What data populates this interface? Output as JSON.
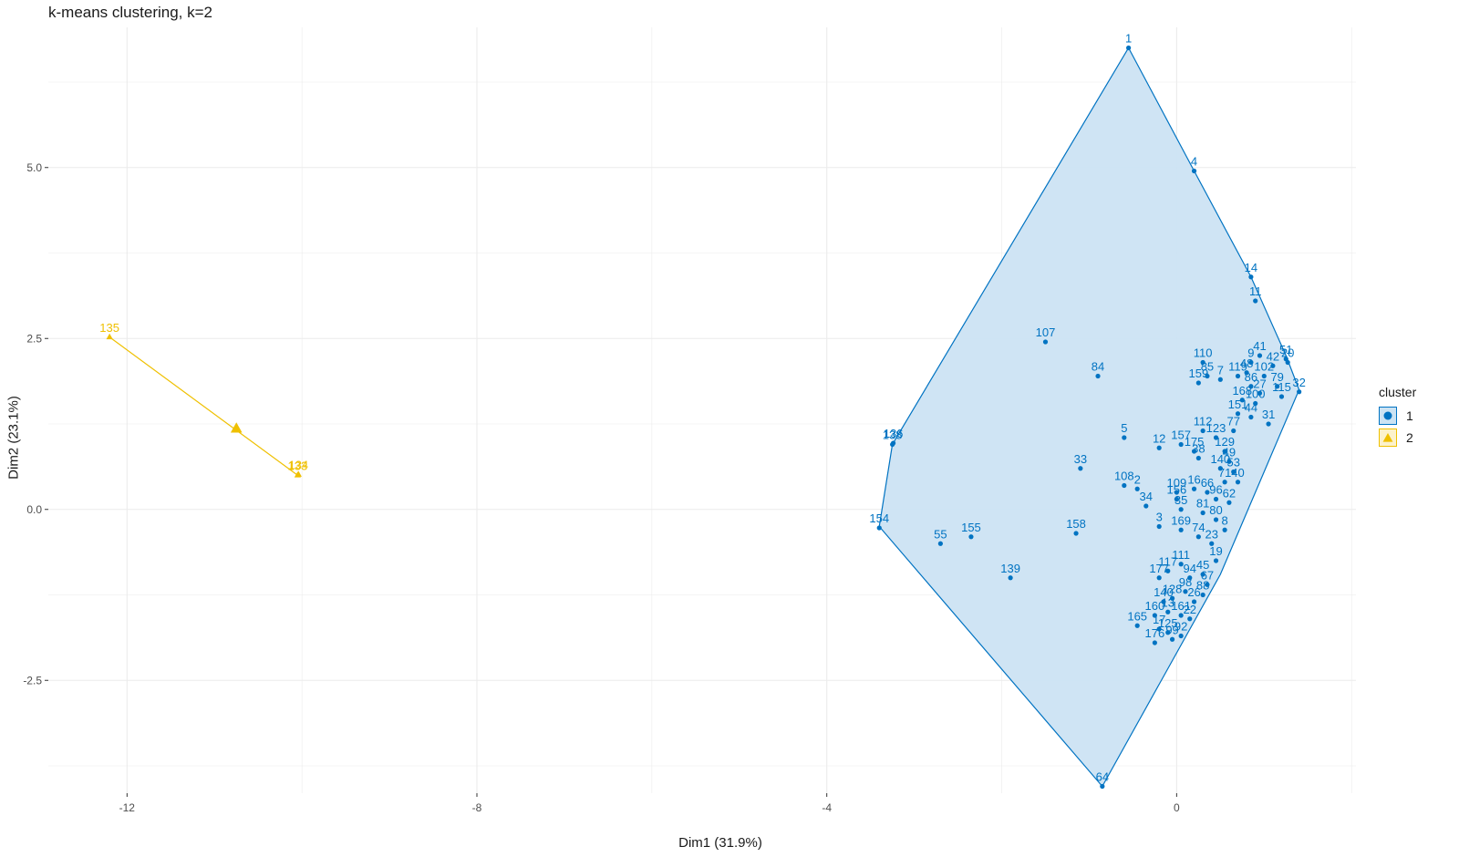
{
  "chart_data": {
    "type": "scatter",
    "title": "k-means clustering, k=2",
    "xlabel": "Dim1 (31.9%)",
    "ylabel": "Dim2 (23.1%)",
    "xlim": [
      -12.9,
      2.05
    ],
    "ylim": [
      -4.15,
      7.05
    ],
    "x_ticks": [
      -12,
      -8,
      -4,
      0
    ],
    "x_tick_labels": [
      "-12",
      "-8",
      "-4",
      "0"
    ],
    "y_ticks": [
      -2.5,
      0,
      2.5,
      5
    ],
    "y_tick_labels": [
      "-2.5",
      "0.0",
      "2.5",
      "5.0"
    ],
    "grid": true,
    "legend": {
      "title": "cluster",
      "placement": "right"
    },
    "series": [
      {
        "name": "1",
        "color": "#0073C2",
        "fill": "#CCE3F3",
        "marker": "circle",
        "hull": [
          [
            -0.55,
            6.75
          ],
          [
            0.2,
            4.95
          ],
          [
            0.85,
            3.4
          ],
          [
            1.25,
            2.25
          ],
          [
            1.4,
            1.75
          ],
          [
            0.5,
            -0.95
          ],
          [
            -0.85,
            -4.05
          ],
          [
            -3.4,
            -0.25
          ],
          [
            -3.25,
            0.95
          ]
        ],
        "points": [
          {
            "x": -0.55,
            "y": 6.75,
            "label": "1"
          },
          {
            "x": 0.2,
            "y": 4.95,
            "label": "4"
          },
          {
            "x": 0.85,
            "y": 3.4,
            "label": "14"
          },
          {
            "x": 0.9,
            "y": 3.05,
            "label": "11"
          },
          {
            "x": 1.25,
            "y": 2.2,
            "label": "51"
          },
          {
            "x": 1.27,
            "y": 2.15,
            "label": "20"
          },
          {
            "x": 1.4,
            "y": 1.72,
            "label": "32"
          },
          {
            "x": 0.95,
            "y": 2.25,
            "label": "41"
          },
          {
            "x": 0.85,
            "y": 2.15,
            "label": "9"
          },
          {
            "x": 1.1,
            "y": 2.1,
            "label": "42"
          },
          {
            "x": 0.8,
            "y": 2.0,
            "label": "48"
          },
          {
            "x": 0.7,
            "y": 1.95,
            "label": "119"
          },
          {
            "x": 1.0,
            "y": 1.95,
            "label": "102"
          },
          {
            "x": 1.15,
            "y": 1.8,
            "label": "79"
          },
          {
            "x": 0.85,
            "y": 1.8,
            "label": "86"
          },
          {
            "x": 0.95,
            "y": 1.7,
            "label": "27"
          },
          {
            "x": 1.2,
            "y": 1.65,
            "label": "115"
          },
          {
            "x": 0.75,
            "y": 1.6,
            "label": "168"
          },
          {
            "x": 0.9,
            "y": 1.55,
            "label": "100"
          },
          {
            "x": 0.7,
            "y": 1.4,
            "label": "151"
          },
          {
            "x": 0.85,
            "y": 1.35,
            "label": "44"
          },
          {
            "x": 1.05,
            "y": 1.25,
            "label": "31"
          },
          {
            "x": 0.65,
            "y": 1.15,
            "label": "77"
          },
          {
            "x": 0.3,
            "y": 2.15,
            "label": "110"
          },
          {
            "x": 0.35,
            "y": 1.95,
            "label": "85"
          },
          {
            "x": 0.25,
            "y": 1.85,
            "label": "159"
          },
          {
            "x": 0.5,
            "y": 1.9,
            "label": "7"
          },
          {
            "x": -1.5,
            "y": 2.45,
            "label": "107"
          },
          {
            "x": -0.9,
            "y": 1.95,
            "label": "84"
          },
          {
            "x": -3.25,
            "y": 0.95,
            "label": "138"
          },
          {
            "x": -3.24,
            "y": 0.97,
            "label": "136"
          },
          {
            "x": -0.6,
            "y": 1.05,
            "label": "5"
          },
          {
            "x": -0.2,
            "y": 0.9,
            "label": "12"
          },
          {
            "x": 0.05,
            "y": 0.95,
            "label": "157"
          },
          {
            "x": 0.3,
            "y": 1.15,
            "label": "112"
          },
          {
            "x": 0.45,
            "y": 1.05,
            "label": "123"
          },
          {
            "x": 0.2,
            "y": 0.85,
            "label": "175"
          },
          {
            "x": 0.25,
            "y": 0.75,
            "label": "38"
          },
          {
            "x": 0.55,
            "y": 0.85,
            "label": "129"
          },
          {
            "x": 0.6,
            "y": 0.7,
            "label": "49"
          },
          {
            "x": 0.5,
            "y": 0.6,
            "label": "140"
          },
          {
            "x": 0.65,
            "y": 0.55,
            "label": "53"
          },
          {
            "x": 0.55,
            "y": 0.4,
            "label": "71"
          },
          {
            "x": 0.7,
            "y": 0.4,
            "label": "40"
          },
          {
            "x": -1.1,
            "y": 0.6,
            "label": "33"
          },
          {
            "x": -0.6,
            "y": 0.35,
            "label": "108"
          },
          {
            "x": -0.45,
            "y": 0.3,
            "label": "2"
          },
          {
            "x": -0.35,
            "y": 0.05,
            "label": "34"
          },
          {
            "x": 0.0,
            "y": 0.15,
            "label": "156"
          },
          {
            "x": 0.2,
            "y": 0.3,
            "label": "16"
          },
          {
            "x": 0.0,
            "y": 0.25,
            "label": "109"
          },
          {
            "x": 0.35,
            "y": 0.25,
            "label": "66"
          },
          {
            "x": 0.45,
            "y": 0.15,
            "label": "96"
          },
          {
            "x": 0.6,
            "y": 0.1,
            "label": "62"
          },
          {
            "x": -0.2,
            "y": -0.25,
            "label": "3"
          },
          {
            "x": 0.05,
            "y": 0.0,
            "label": "35"
          },
          {
            "x": 0.3,
            "y": -0.05,
            "label": "81"
          },
          {
            "x": 0.45,
            "y": -0.15,
            "label": "80"
          },
          {
            "x": 0.55,
            "y": -0.3,
            "label": "8"
          },
          {
            "x": 0.05,
            "y": -0.3,
            "label": "169"
          },
          {
            "x": 0.25,
            "y": -0.4,
            "label": "74"
          },
          {
            "x": 0.4,
            "y": -0.5,
            "label": "23"
          },
          {
            "x": 0.45,
            "y": -0.75,
            "label": "19"
          },
          {
            "x": -1.15,
            "y": -0.35,
            "label": "158"
          },
          {
            "x": -2.35,
            "y": -0.4,
            "label": "155"
          },
          {
            "x": -2.7,
            "y": -0.5,
            "label": "55"
          },
          {
            "x": -3.4,
            "y": -0.27,
            "label": "154"
          },
          {
            "x": -1.9,
            "y": -1.0,
            "label": "139"
          },
          {
            "x": 0.05,
            "y": -0.8,
            "label": "111"
          },
          {
            "x": -0.1,
            "y": -0.9,
            "label": "117"
          },
          {
            "x": -0.2,
            "y": -1.0,
            "label": "177"
          },
          {
            "x": 0.15,
            "y": -1.0,
            "label": "94"
          },
          {
            "x": 0.3,
            "y": -0.95,
            "label": "45"
          },
          {
            "x": 0.35,
            "y": -1.1,
            "label": "67"
          },
          {
            "x": 0.1,
            "y": -1.2,
            "label": "98"
          },
          {
            "x": -0.05,
            "y": -1.3,
            "label": "128"
          },
          {
            "x": -0.15,
            "y": -1.35,
            "label": "140"
          },
          {
            "x": 0.2,
            "y": -1.35,
            "label": "26"
          },
          {
            "x": 0.3,
            "y": -1.25,
            "label": "88"
          },
          {
            "x": -0.25,
            "y": -1.55,
            "label": "160"
          },
          {
            "x": -0.1,
            "y": -1.5,
            "label": "13"
          },
          {
            "x": 0.05,
            "y": -1.55,
            "label": "161"
          },
          {
            "x": 0.15,
            "y": -1.6,
            "label": "22"
          },
          {
            "x": -0.45,
            "y": -1.7,
            "label": "165"
          },
          {
            "x": -0.2,
            "y": -1.75,
            "label": "17"
          },
          {
            "x": -0.1,
            "y": -1.8,
            "label": "125"
          },
          {
            "x": 0.05,
            "y": -1.85,
            "label": "92"
          },
          {
            "x": -0.25,
            "y": -1.95,
            "label": "176"
          },
          {
            "x": -0.05,
            "y": -1.9,
            "label": "99"
          },
          {
            "x": -0.85,
            "y": -4.05,
            "label": "64"
          }
        ]
      },
      {
        "name": "2",
        "color": "#EFC000",
        "fill": "#FCF2CC",
        "marker": "triangle",
        "hull": [
          [
            -12.2,
            2.52
          ],
          [
            -10.05,
            0.5
          ]
        ],
        "centroid": {
          "x": -10.75,
          "y": 1.18
        },
        "points": [
          {
            "x": -12.2,
            "y": 2.52,
            "label": "135"
          },
          {
            "x": -10.05,
            "y": 0.5,
            "label": "133"
          },
          {
            "x": -10.04,
            "y": 0.51,
            "label": "134"
          }
        ]
      }
    ]
  }
}
